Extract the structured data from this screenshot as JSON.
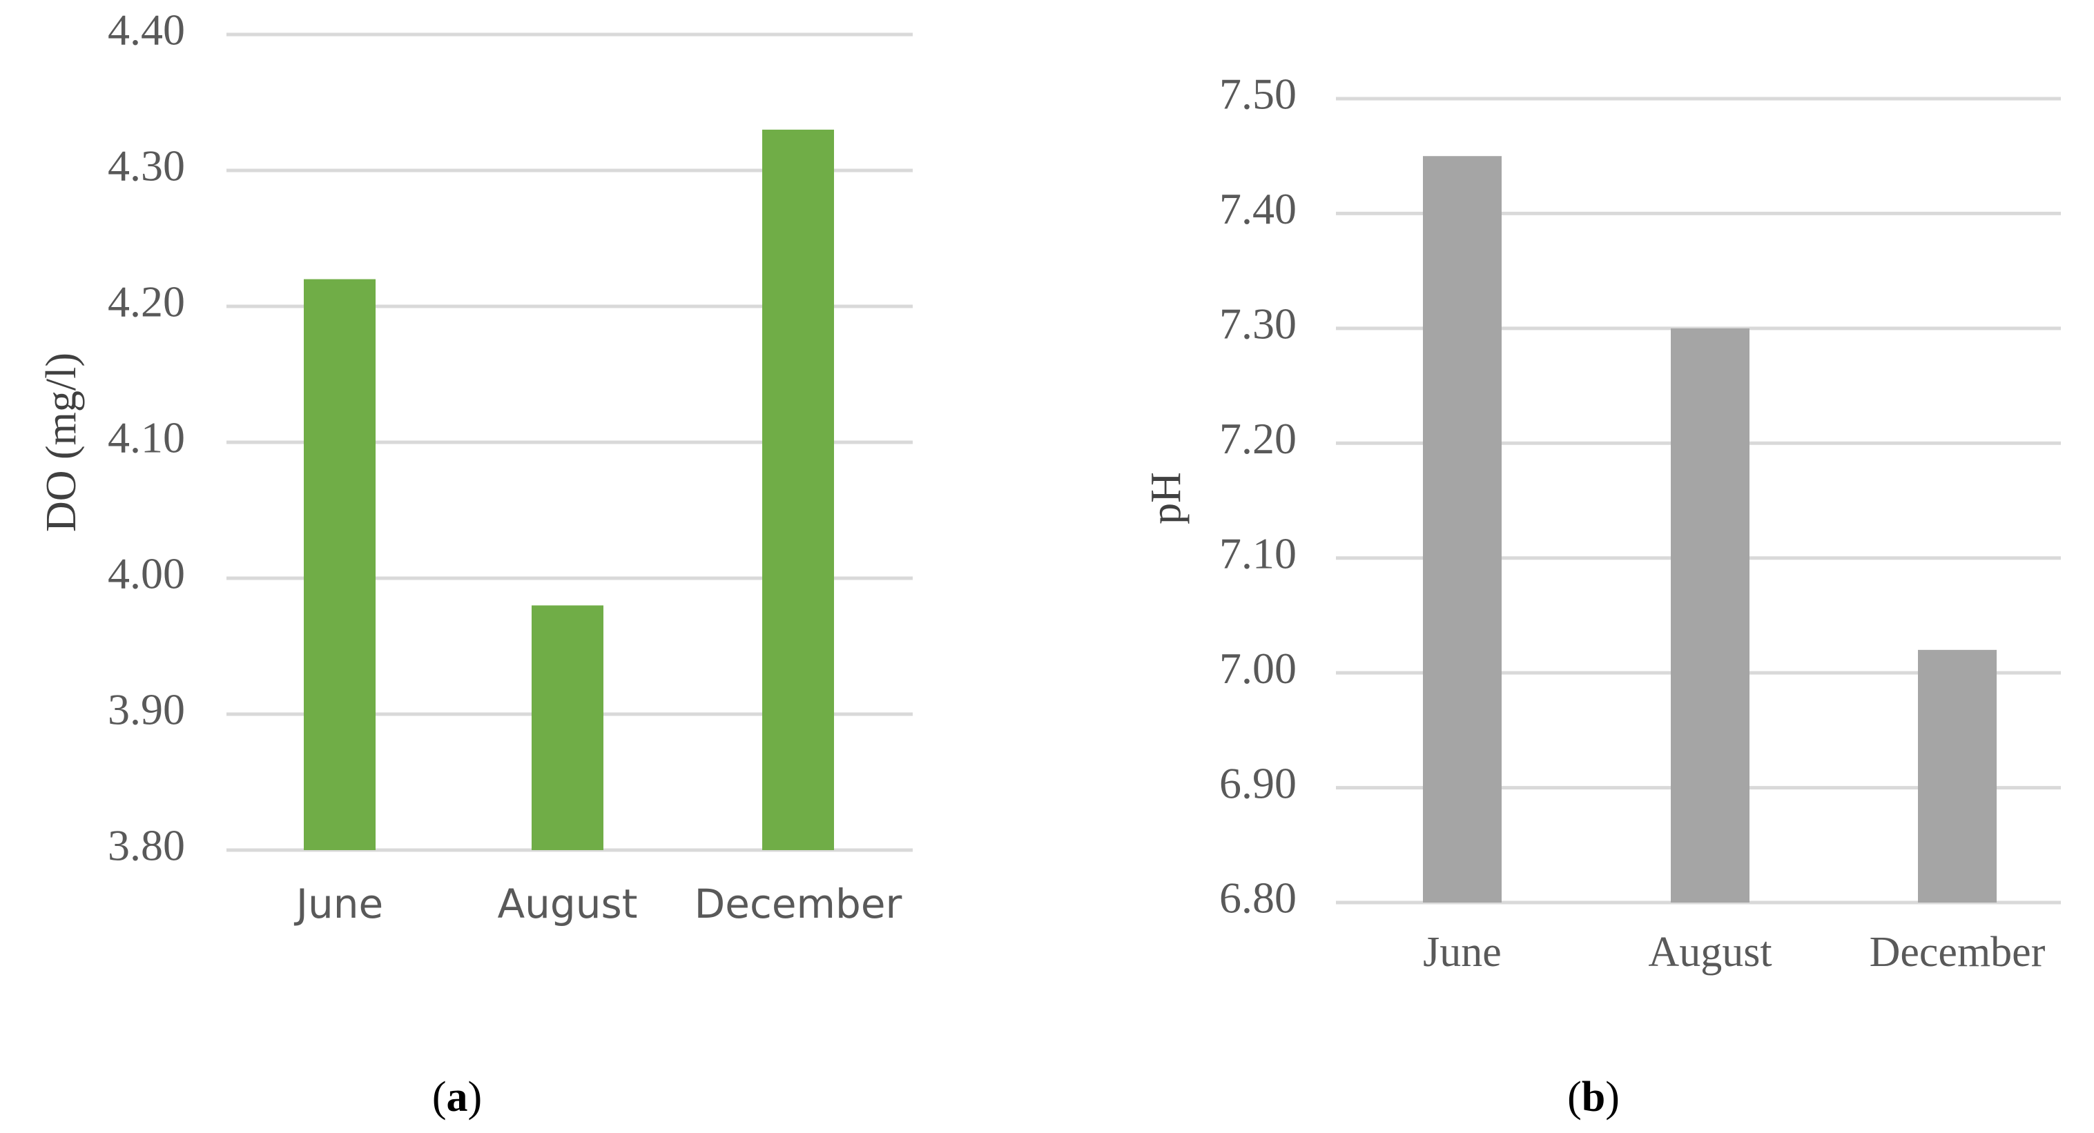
{
  "chart_data": [
    {
      "type": "bar",
      "panel_label": "a",
      "categories": [
        "June",
        "August",
        "December"
      ],
      "values": [
        4.22,
        3.98,
        4.33
      ],
      "ylabel": "DO (mg/l)",
      "ylim": [
        3.8,
        4.4
      ],
      "yticks": [
        "3.80",
        "3.90",
        "4.00",
        "4.10",
        "4.20",
        "4.30",
        "4.40"
      ],
      "color": "#70ad47",
      "grid": true,
      "legend": "none"
    },
    {
      "type": "bar",
      "panel_label": "b",
      "categories": [
        "June",
        "August",
        "December"
      ],
      "values": [
        7.45,
        7.3,
        7.02
      ],
      "ylabel": "pH",
      "ylim": [
        6.8,
        7.5
      ],
      "yticks": [
        "6.80",
        "6.90",
        "7.00",
        "7.10",
        "7.20",
        "7.30",
        "7.40",
        "7.50"
      ],
      "color": "#a5a5a5",
      "grid": true,
      "legend": "none"
    }
  ]
}
